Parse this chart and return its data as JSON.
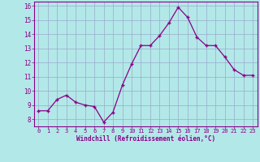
{
  "x": [
    0,
    1,
    2,
    3,
    4,
    5,
    6,
    7,
    8,
    9,
    10,
    11,
    12,
    13,
    14,
    15,
    16,
    17,
    18,
    19,
    20,
    21,
    22,
    23
  ],
  "y": [
    8.6,
    8.6,
    9.4,
    9.7,
    9.2,
    9.0,
    8.9,
    7.8,
    8.5,
    10.4,
    11.9,
    13.2,
    13.2,
    13.9,
    14.8,
    15.9,
    15.2,
    13.8,
    13.2,
    13.2,
    12.4,
    11.5,
    11.1,
    11.1
  ],
  "xlim": [
    -0.5,
    23.5
  ],
  "ylim": [
    7.5,
    16.3
  ],
  "yticks": [
    8,
    9,
    10,
    11,
    12,
    13,
    14,
    15,
    16
  ],
  "xticks": [
    0,
    1,
    2,
    3,
    4,
    5,
    6,
    7,
    8,
    9,
    10,
    11,
    12,
    13,
    14,
    15,
    16,
    17,
    18,
    19,
    20,
    21,
    22,
    23
  ],
  "xlabel": "Windchill (Refroidissement éolien,°C)",
  "line_color": "#880088",
  "marker": "+",
  "bg_color": "#b3e8e8",
  "grid_color": "#99aacc",
  "label_color": "#880088",
  "tick_color": "#880088",
  "spine_color": "#880088"
}
